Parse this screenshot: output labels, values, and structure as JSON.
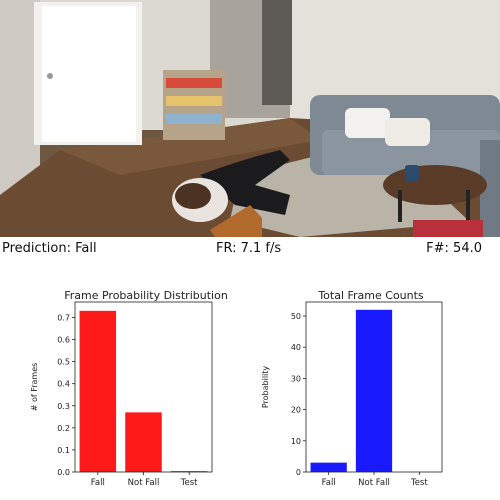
{
  "status": {
    "prediction": "Prediction: Fall",
    "frame_rate": "FR: 7.1 f/s",
    "frame_number": "F#: 54.0"
  },
  "chart_data": [
    {
      "type": "bar",
      "title": "Frame Probability Distribution",
      "ylabel": "# of Frames",
      "xlabel": "",
      "categories": [
        "Fall",
        "Not Fall",
        "Test"
      ],
      "values": [
        0.73,
        0.27,
        0.004
      ],
      "ylim": [
        0,
        0.77
      ],
      "yticks": [
        0.0,
        0.1,
        0.2,
        0.3,
        0.4,
        0.5,
        0.6,
        0.7
      ],
      "color": "#ff1a1a"
    },
    {
      "type": "bar",
      "title": "Total Frame Counts",
      "ylabel": "Probability",
      "xlabel": "",
      "categories": [
        "Fall",
        "Not Fall",
        "Test"
      ],
      "values": [
        3,
        52,
        0
      ],
      "ylim": [
        0,
        54.5
      ],
      "yticks": [
        0,
        10,
        20,
        30,
        40,
        50
      ],
      "color": "#1a1aff"
    }
  ]
}
